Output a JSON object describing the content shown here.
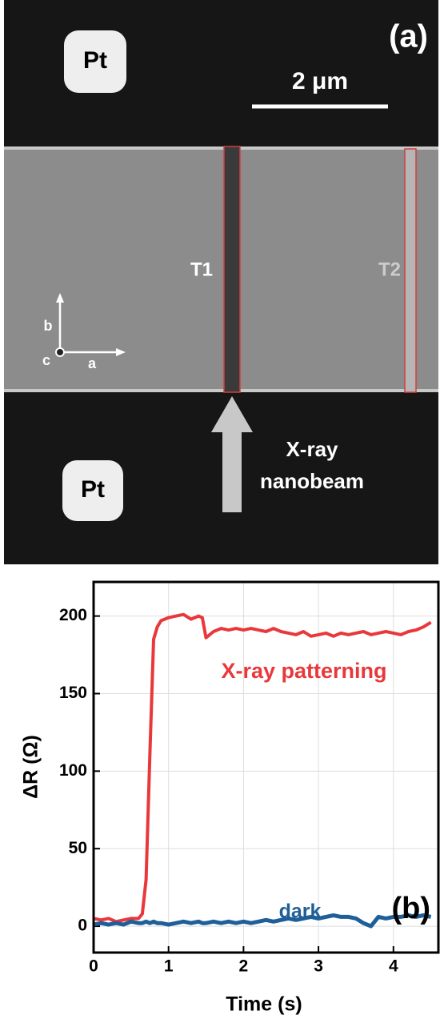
{
  "figure_a": {
    "panel_label": "(a)",
    "pad_top": "Pt",
    "pad_bottom": "Pt",
    "scale_bar": "2 μm",
    "trench_1": "T1",
    "trench_2": "T2",
    "axis_b": "b",
    "axis_c": "c",
    "axis_a": "a",
    "beam_line_1": "X-ray",
    "beam_line_2": "nanobeam"
  },
  "chart_data": {
    "type": "line",
    "x_label": "Time (s)",
    "y_label": "ΔR (Ω)",
    "annotations": [
      {
        "text": "X-ray patterning",
        "color": "#e8383b"
      },
      {
        "text": "dark",
        "color": "#1f5f99"
      },
      {
        "text": "(b)",
        "color": "#000000"
      }
    ],
    "x": [
      0,
      0.1,
      0.2,
      0.3,
      0.4,
      0.5,
      0.6,
      0.65,
      0.7,
      0.75,
      0.8,
      0.85,
      0.9,
      1.0,
      1.1,
      1.2,
      1.3,
      1.4,
      1.45,
      1.5,
      1.6,
      1.7,
      1.8,
      1.9,
      2.0,
      2.1,
      2.2,
      2.3,
      2.4,
      2.5,
      2.6,
      2.7,
      2.8,
      2.9,
      3.0,
      3.1,
      3.2,
      3.3,
      3.4,
      3.5,
      3.6,
      3.7,
      3.8,
      3.9,
      4.0,
      4.1,
      4.2,
      4.3,
      4.4,
      4.5
    ],
    "series": [
      {
        "name": "X-ray patterning",
        "color": "#e8383b",
        "values": [
          5,
          4,
          5,
          3,
          4,
          5,
          5,
          8,
          30,
          110,
          185,
          193,
          197,
          199,
          200,
          201,
          198,
          200,
          199,
          186,
          190,
          192,
          191,
          192,
          191,
          192,
          191,
          190,
          192,
          190,
          189,
          188,
          190,
          187,
          188,
          189,
          187,
          189,
          188,
          189,
          190,
          188,
          189,
          190,
          189,
          188,
          190,
          191,
          193,
          196
        ]
      },
      {
        "name": "dark",
        "color": "#1f5f99",
        "values": [
          1,
          2,
          1,
          2,
          1,
          3,
          2,
          2,
          3,
          2,
          3,
          2,
          2,
          1,
          2,
          3,
          2,
          3,
          2,
          2,
          3,
          2,
          3,
          2,
          3,
          2,
          3,
          4,
          3,
          4,
          5,
          4,
          5,
          6,
          5,
          6,
          7,
          6,
          6,
          5,
          2,
          0,
          6,
          5,
          6,
          6,
          7,
          6,
          7,
          6
        ]
      }
    ],
    "xlim": [
      0,
      4.6
    ],
    "ylim": [
      -17,
      222
    ],
    "xticks": [
      0,
      1,
      2,
      3,
      4
    ],
    "yticks": [
      0,
      50,
      100,
      150,
      200
    ],
    "grid": true
  }
}
